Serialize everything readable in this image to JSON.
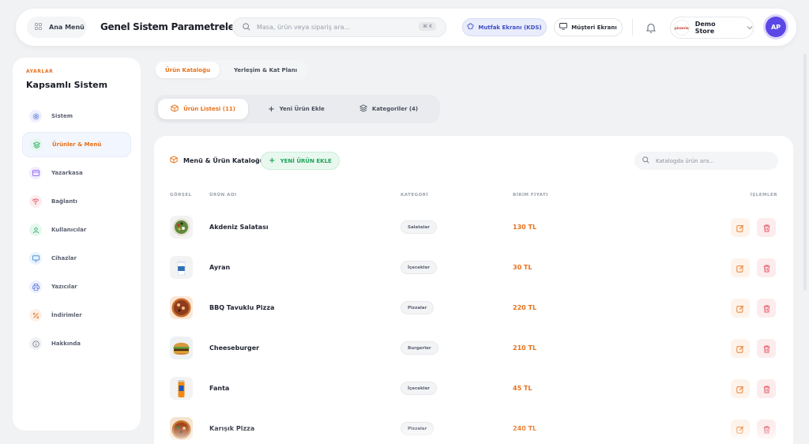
{
  "header": {
    "menu_label": "Ana Menü",
    "title": "Genel Sistem Parametreleri",
    "search_placeholder": "Masa, ürün veya sipariş ara...",
    "search_shortcut": "⌘ K",
    "kds_label": "Mutfak Ekranı (KDS)",
    "customer_label": "Müşteri Ekranı",
    "store_name": "Demo Store",
    "store_logo_text": "pizzeria",
    "avatar_initials": "AP"
  },
  "sidebar": {
    "eyebrow": "AYARLAR",
    "title": "Kapsamlı Sistem",
    "items": [
      {
        "label": "Sistem",
        "icon": "gear-icon",
        "color": "#4f6bdc",
        "bg": "#eef1fd"
      },
      {
        "label": "Ürünler & Menü",
        "icon": "layers-icon",
        "color": "#2fae6a",
        "bg": "#e6f7ee",
        "active": true
      },
      {
        "label": "Yazarkasa",
        "icon": "card-icon",
        "color": "#8a5cf0",
        "bg": "#f2edfe"
      },
      {
        "label": "Bağlantı",
        "icon": "wifi-icon",
        "color": "#e24b5b",
        "bg": "#fdecee"
      },
      {
        "label": "Kullanıcılar",
        "icon": "user-icon",
        "color": "#2fae6a",
        "bg": "#e6f7ee"
      },
      {
        "label": "Cihazlar",
        "icon": "monitor-icon",
        "color": "#3b82d6",
        "bg": "#e8f2fc"
      },
      {
        "label": "Yazıcılar",
        "icon": "printer-icon",
        "color": "#4f6bdc",
        "bg": "#eef1fd"
      },
      {
        "label": "İndirimler",
        "icon": "percent-icon",
        "color": "#e8701a",
        "bg": "#fdf1e7"
      },
      {
        "label": "Hakkında",
        "icon": "info-icon",
        "color": "#7a808c",
        "bg": "#f1f2f4"
      }
    ]
  },
  "tabs_top": [
    "Ürün Kataloğu",
    "Yerleşim & Kat Planı"
  ],
  "segments": [
    {
      "label": "Ürün Listesi (11)",
      "icon": "box-icon",
      "active": true
    },
    {
      "label": "Yeni Ürün Ekle",
      "icon": "plus-icon"
    },
    {
      "label": "Kategoriler (4)",
      "icon": "layers-icon"
    }
  ],
  "catalog": {
    "title": "Menü & Ürün Kataloğu",
    "new_button": "YENİ ÜRÜN EKLE",
    "search_placeholder": "Katalogda ürün ara...",
    "columns": {
      "image": "GÖRSEL",
      "name": "ÜRÜN ADI",
      "category": "KATEGORİ",
      "price": "BİRİM FİYATI",
      "actions": "İŞLEMLER"
    },
    "rows": [
      {
        "name": "Akdeniz Salatası",
        "category": "Salatalar",
        "price": "130 TL",
        "thumb": "salad"
      },
      {
        "name": "Ayran",
        "category": "İçecekler",
        "price": "30 TL",
        "thumb": "ayran"
      },
      {
        "name": "BBQ Tavuklu Pizza",
        "category": "Pizzalar",
        "price": "220 TL",
        "thumb": "pizza"
      },
      {
        "name": "Cheeseburger",
        "category": "Burgerler",
        "price": "210 TL",
        "thumb": "burger"
      },
      {
        "name": "Fanta",
        "category": "İçecekler",
        "price": "45 TL",
        "thumb": "fanta"
      },
      {
        "name": "Karışık Pizza",
        "category": "Pizzalar",
        "price": "240 TL",
        "thumb": "pizza2"
      }
    ]
  },
  "colors": {
    "accent": "#e8701a",
    "primary": "#5b46e6",
    "green": "#1fa35a",
    "danger": "#e24b5b"
  }
}
